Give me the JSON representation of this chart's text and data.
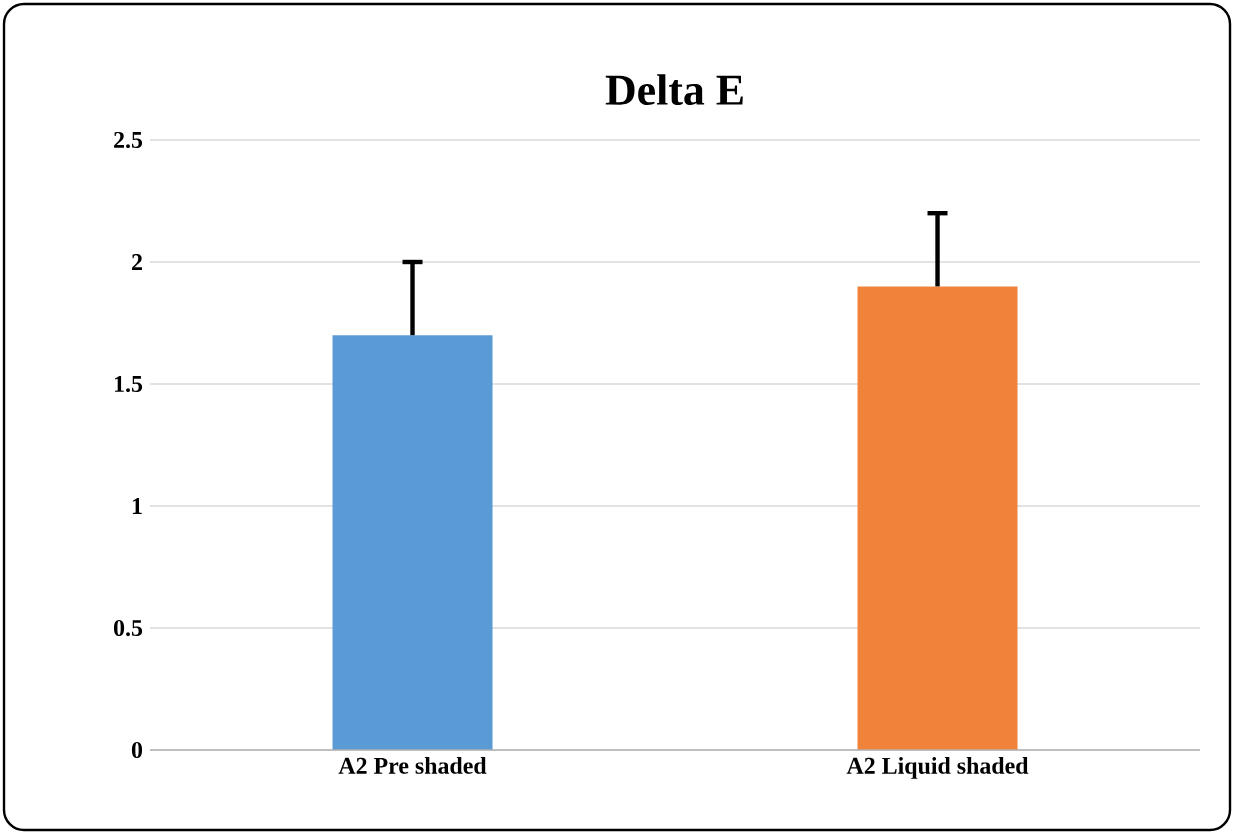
{
  "chart_data": {
    "type": "bar",
    "title": "Delta E",
    "categories": [
      "A2 Pre shaded",
      "A2 Liquid shaded"
    ],
    "values": [
      1.7,
      1.9
    ],
    "colors": [
      "#5b9bd5",
      "#f0823a"
    ],
    "errors": [
      [
        1.7,
        2.0
      ],
      [
        1.9,
        2.2
      ]
    ],
    "ylim": [
      0,
      2.5
    ],
    "yticks": [
      0,
      0.5,
      1,
      1.5,
      2,
      2.5
    ],
    "grid": "y"
  }
}
